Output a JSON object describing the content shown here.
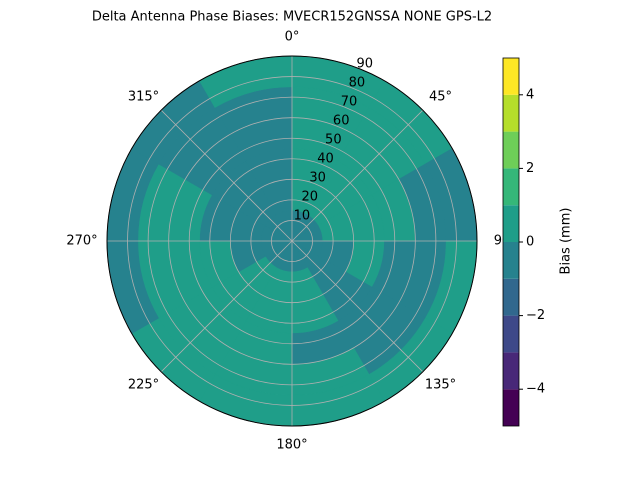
{
  "chart_data": {
    "type": "polar-contour",
    "title": "Delta Antenna Phase Biases: MVECR152GNSSA   NONE GPS-L2",
    "theta_edges": [
      0,
      30,
      60,
      90,
      120,
      150,
      180,
      210,
      240,
      270,
      300,
      330,
      360
    ],
    "r_edges": [
      0,
      15,
      30,
      45,
      60,
      75,
      90
    ],
    "values": [
      [
        -0.5,
        0.5,
        0.5,
        0.5,
        0.5,
        0.5
      ],
      [
        -0.5,
        0.5,
        0.5,
        0.5,
        0.5,
        0.5
      ],
      [
        -0.5,
        0.5,
        0.5,
        0.5,
        -0.5,
        -0.5
      ],
      [
        -0.5,
        -0.5,
        0.5,
        -0.5,
        -0.5,
        0.5
      ],
      [
        -0.5,
        -0.5,
        -0.5,
        -0.5,
        -0.5,
        0.5
      ],
      [
        -0.5,
        0.5,
        0.5,
        -0.5,
        0.5,
        0.5
      ],
      [
        -0.5,
        0.5,
        0.5,
        0.5,
        0.5,
        0.5
      ],
      [
        -0.5,
        0.5,
        0.5,
        0.5,
        0.5,
        0.5
      ],
      [
        -0.5,
        -0.5,
        0.5,
        0.5,
        0.5,
        -0.5
      ],
      [
        -0.5,
        -0.5,
        -0.5,
        0.5,
        0.5,
        -0.5
      ],
      [
        -0.5,
        -0.5,
        -0.5,
        -0.5,
        -0.5,
        -0.5
      ],
      [
        -0.5,
        -0.5,
        -0.5,
        -0.5,
        -0.5,
        0.5
      ]
    ],
    "rlim": [
      0,
      90
    ],
    "rticks": [
      10,
      20,
      30,
      40,
      50,
      60,
      70,
      80,
      90
    ],
    "thetaticks": [
      {
        "value": 0,
        "label": "0°"
      },
      {
        "value": 45,
        "label": "45°"
      },
      90,
      {
        "value": 135,
        "label": "135°"
      },
      {
        "value": 180,
        "label": "180°"
      },
      {
        "value": 225,
        "label": "225°"
      },
      {
        "value": 270,
        "label": "270°"
      },
      {
        "value": 315,
        "label": "315°"
      }
    ],
    "grid": true,
    "levels": [
      -5,
      -4,
      -3,
      -2,
      -1,
      0,
      1,
      2,
      3,
      4,
      5
    ],
    "colors": [
      "#440154",
      "#482878",
      "#3e4989",
      "#31688e",
      "#26828e",
      "#1f9e89",
      "#35b779",
      "#6ece58",
      "#b5de2b",
      "#fde725"
    ],
    "colorbar_label": "Bias (mm)",
    "colorbar_ticks": [
      {
        "value": -4,
        "label": "−4"
      },
      {
        "value": -2,
        "label": "−2"
      },
      0,
      2,
      4
    ]
  }
}
